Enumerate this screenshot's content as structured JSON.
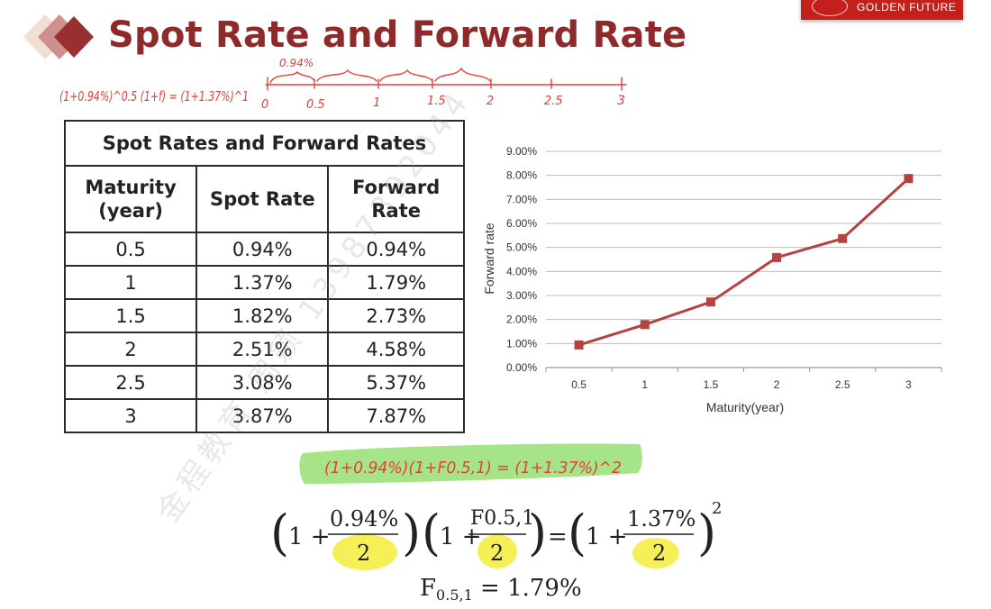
{
  "header": {
    "title": "Spot Rate and Forward Rate",
    "brand": "GOLDEN FUTURE"
  },
  "handwritten": {
    "top_equation": "(1+0.94%)^0.5 (1+f) = (1+1.37%)^1",
    "timeline_rate": "0.94%",
    "timeline_ticks": [
      "0",
      "0.5",
      "1",
      "1.5",
      "2",
      "2.5",
      "3"
    ],
    "highlight_equation": "(1+0.94%)(1+F0.5,1) = (1+1.37%)^2"
  },
  "table": {
    "caption": "Spot Rates and Forward Rates",
    "headers": [
      "Maturity (year)",
      "Spot Rate",
      "Forward Rate"
    ],
    "rows": [
      [
        "0.5",
        "0.94%",
        "0.94%"
      ],
      [
        "1",
        "1.37%",
        "1.79%"
      ],
      [
        "1.5",
        "1.82%",
        "2.73%"
      ],
      [
        "2",
        "2.51%",
        "4.58%"
      ],
      [
        "2.5",
        "3.08%",
        "5.37%"
      ],
      [
        "3",
        "3.87%",
        "7.87%"
      ]
    ]
  },
  "chart_data": {
    "type": "line",
    "title": "",
    "xlabel": "Maturity(year)",
    "ylabel": "Forward rate",
    "categories": [
      "0.5",
      "1",
      "1.5",
      "2",
      "2.5",
      "3"
    ],
    "series": [
      {
        "values": [
          0.94,
          1.79,
          2.73,
          4.58,
          5.37,
          7.87
        ]
      }
    ],
    "ylim": [
      0,
      9
    ],
    "ytick_labels": [
      "0.00%",
      "1.00%",
      "2.00%",
      "3.00%",
      "4.00%",
      "5.00%",
      "6.00%",
      "7.00%",
      "8.00%",
      "9.00%"
    ],
    "grid": true,
    "color": "#b5423f"
  },
  "equation": {
    "open": "(",
    "one": "1 +",
    "frac1_num": "0.94%",
    "frac_den": "2",
    "frac2_num": "F0.5,1",
    "equals": "=",
    "frac3_num": "1.37%",
    "power": "2",
    "result_lhs": "F",
    "result_sub": "0.5,1",
    "result_rhs": "= 1.79%"
  },
  "watermark": "金程教育 周颖 13987392044"
}
